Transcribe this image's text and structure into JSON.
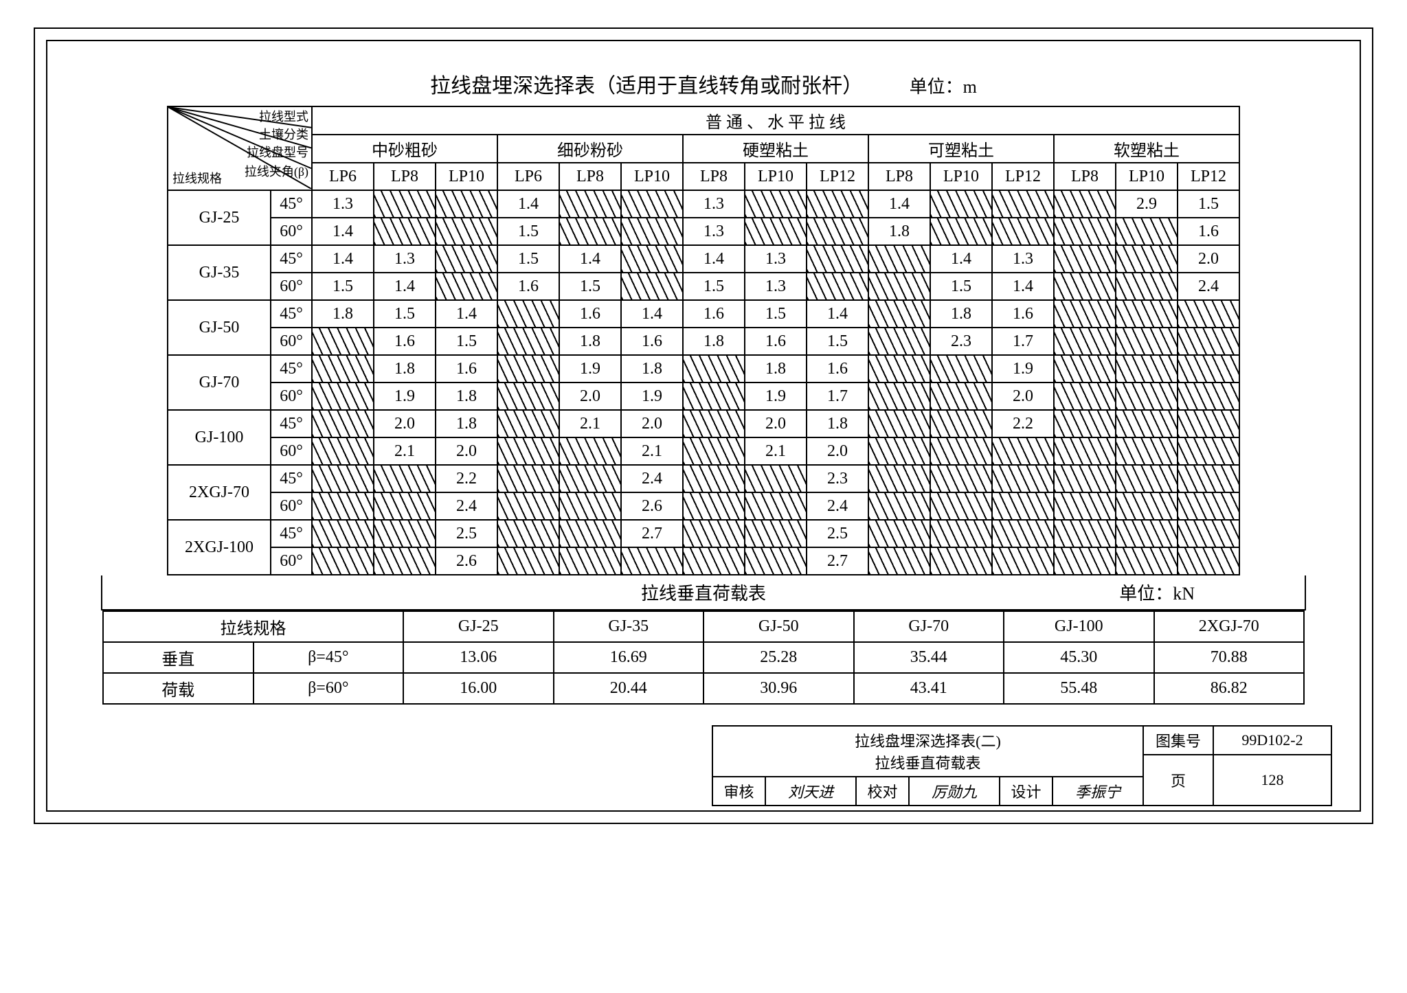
{
  "title": "拉线盘埋深选择表（适用于直线转角或耐张杆）",
  "unit_main": "单位：m",
  "diag_labels": {
    "spec": "拉线规格",
    "a": "拉线型式",
    "b": "土壤分类",
    "c": "拉线盘型号",
    "d": "拉线夹角(β)"
  },
  "super_header": "普 通 、 水 平 拉 线",
  "soil_groups": [
    "中砂粗砂",
    "细砂粉砂",
    "硬塑粘土",
    "可塑粘土",
    "软塑粘土"
  ],
  "lp_seq_A": [
    "LP6",
    "LP8",
    "LP10"
  ],
  "lp_seq_B": [
    "LP8",
    "LP10",
    "LP12"
  ],
  "row_specs": [
    "GJ-25",
    "GJ-35",
    "GJ-50",
    "GJ-70",
    "GJ-100",
    "2XGJ-70",
    "2XGJ-100"
  ],
  "angles": [
    "45°",
    "60°"
  ],
  "main_rows": [
    [
      "1.3",
      "H",
      "H",
      "1.4",
      "H",
      "H",
      "1.3",
      "H",
      "H",
      "1.4",
      "H",
      "H",
      "H",
      "2.9",
      "1.5"
    ],
    [
      "1.4",
      "H",
      "H",
      "1.5",
      "H",
      "H",
      "1.3",
      "H",
      "H",
      "1.8",
      "H",
      "H",
      "H",
      "H",
      "1.6"
    ],
    [
      "1.4",
      "1.3",
      "H",
      "1.5",
      "1.4",
      "H",
      "1.4",
      "1.3",
      "H",
      "H",
      "1.4",
      "1.3",
      "H",
      "H",
      "2.0"
    ],
    [
      "1.5",
      "1.4",
      "H",
      "1.6",
      "1.5",
      "H",
      "1.5",
      "1.3",
      "H",
      "H",
      "1.5",
      "1.4",
      "H",
      "H",
      "2.4"
    ],
    [
      "1.8",
      "1.5",
      "1.4",
      "H",
      "1.6",
      "1.4",
      "1.6",
      "1.5",
      "1.4",
      "H",
      "1.8",
      "1.6",
      "H",
      "H",
      "H"
    ],
    [
      "H",
      "1.6",
      "1.5",
      "H",
      "1.8",
      "1.6",
      "1.8",
      "1.6",
      "1.5",
      "H",
      "2.3",
      "1.7",
      "H",
      "H",
      "H"
    ],
    [
      "H",
      "1.8",
      "1.6",
      "H",
      "1.9",
      "1.8",
      "H",
      "1.8",
      "1.6",
      "H",
      "H",
      "1.9",
      "H",
      "H",
      "H"
    ],
    [
      "H",
      "1.9",
      "1.8",
      "H",
      "2.0",
      "1.9",
      "H",
      "1.9",
      "1.7",
      "H",
      "H",
      "2.0",
      "H",
      "H",
      "H"
    ],
    [
      "H",
      "2.0",
      "1.8",
      "H",
      "2.1",
      "2.0",
      "H",
      "2.0",
      "1.8",
      "H",
      "H",
      "2.2",
      "H",
      "H",
      "H"
    ],
    [
      "H",
      "2.1",
      "2.0",
      "H",
      "H",
      "2.1",
      "H",
      "2.1",
      "2.0",
      "H",
      "H",
      "H",
      "H",
      "H",
      "H"
    ],
    [
      "H",
      "H",
      "2.2",
      "H",
      "H",
      "2.4",
      "H",
      "H",
      "2.3",
      "H",
      "H",
      "H",
      "H",
      "H",
      "H"
    ],
    [
      "H",
      "H",
      "2.4",
      "H",
      "H",
      "2.6",
      "H",
      "H",
      "2.4",
      "H",
      "H",
      "H",
      "H",
      "H",
      "H"
    ],
    [
      "H",
      "H",
      "2.5",
      "H",
      "H",
      "2.7",
      "H",
      "H",
      "2.5",
      "H",
      "H",
      "H",
      "H",
      "H",
      "H"
    ],
    [
      "H",
      "H",
      "2.6",
      "H",
      "H",
      "H",
      "H",
      "H",
      "2.7",
      "H",
      "H",
      "H",
      "H",
      "H",
      "H"
    ]
  ],
  "sub_title": "拉线垂直荷载表",
  "sub_unit": "单位：kN",
  "sub_header_left": "拉线规格",
  "sub_row_label": "垂直\n荷载",
  "sub_cols": [
    "GJ-25",
    "GJ-35",
    "GJ-50",
    "GJ-70",
    "GJ-100",
    "2XGJ-70"
  ],
  "sub_angle": [
    "β=45°",
    "β=60°"
  ],
  "sub_rows": [
    [
      "13.06",
      "16.69",
      "25.28",
      "35.44",
      "45.30",
      "70.88"
    ],
    [
      "16.00",
      "20.44",
      "30.96",
      "43.41",
      "55.48",
      "86.82"
    ]
  ],
  "tb": {
    "title1": "拉线盘埋深选择表(二)",
    "title2": "拉线垂直荷载表",
    "tuji_lbl": "图集号",
    "tuji_val": "99D102-2",
    "page_lbl": "页",
    "page_val": "128",
    "shenhe": "审核",
    "jiaodu": "校对",
    "sheji": "设计",
    "sig1": "刘天进",
    "sig2": "厉勋九",
    "sig3": "季振宁"
  },
  "colors": {
    "line": "#000000",
    "bg": "#ffffff"
  }
}
